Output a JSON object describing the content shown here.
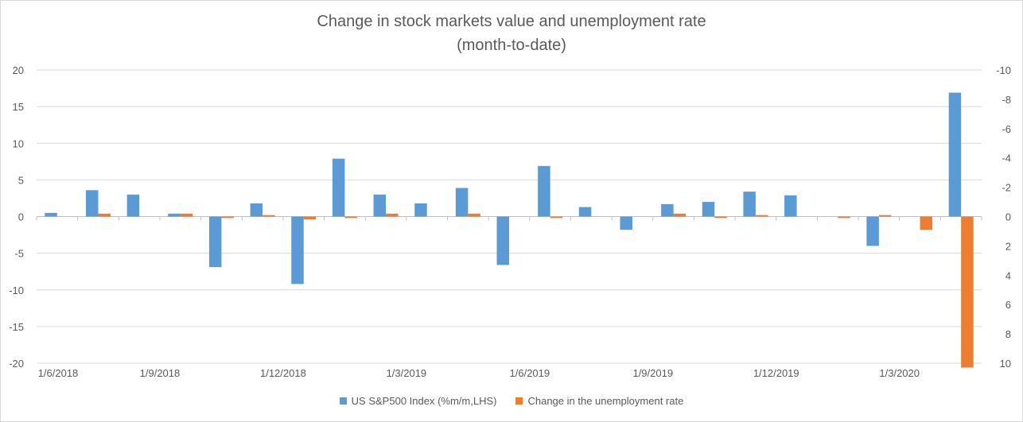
{
  "chart_data": {
    "type": "bar",
    "title": "Change in stock markets value and unemployment rate",
    "subtitle": "(month-to-date)",
    "categories": [
      "1/6/2018",
      "1/7/2018",
      "1/8/2018",
      "1/9/2018",
      "1/10/2018",
      "1/11/2018",
      "1/12/2018",
      "1/1/2019",
      "1/2/2019",
      "1/3/2019",
      "1/4/2019",
      "1/5/2019",
      "1/6/2019",
      "1/7/2019",
      "1/8/2019",
      "1/9/2019",
      "1/10/2019",
      "1/11/2019",
      "1/12/2019",
      "1/1/2020",
      "1/2/2020",
      "1/3/2020",
      "1/4/2020"
    ],
    "x_tick_labels": [
      "1/6/2018",
      "1/9/2018",
      "1/12/2018",
      "1/3/2019",
      "1/6/2019",
      "1/9/2019",
      "1/12/2019",
      "1/3/2020"
    ],
    "series": [
      {
        "name": "US S&P500 Index (%m/m,LHS)",
        "axis": "left",
        "color": "#5b9bd5",
        "values": [
          0.5,
          3.6,
          3.0,
          0.4,
          -6.9,
          1.8,
          -9.2,
          7.9,
          3.0,
          1.8,
          3.9,
          -6.6,
          6.9,
          1.3,
          -1.8,
          1.7,
          2.0,
          3.4,
          2.9,
          0.0,
          -4.0,
          0.0,
          16.9
        ]
      },
      {
        "name": "Change in the unemployment rate",
        "axis": "right",
        "color": "#ed7d31",
        "values": [
          0.0,
          -0.2,
          0.0,
          -0.2,
          0.1,
          -0.1,
          0.2,
          0.1,
          -0.2,
          0.0,
          -0.2,
          0.0,
          0.1,
          0.0,
          0.0,
          -0.2,
          0.1,
          -0.1,
          0.0,
          0.1,
          -0.1,
          0.9,
          10.3
        ]
      }
    ],
    "y_left": {
      "min": -20,
      "max": 20,
      "step": 5,
      "ticks": [
        "20",
        "15",
        "10",
        "5",
        "0",
        "-5",
        "-10",
        "-15",
        "-20"
      ]
    },
    "y_right": {
      "min": -10,
      "max": 10,
      "step": 2,
      "inverted": true,
      "ticks": [
        "-10",
        "-8",
        "-6",
        "-4",
        "-2",
        "0",
        "2",
        "4",
        "6",
        "8",
        "10"
      ]
    },
    "grid": true,
    "legend_position": "bottom"
  }
}
